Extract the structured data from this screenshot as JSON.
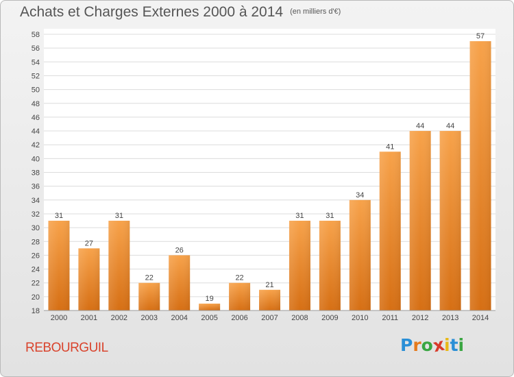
{
  "title": "Achats et Charges Externes 2000 à 2014",
  "subtitle": "(en milliers d'€)",
  "city": "REBOURGUIL",
  "logo": {
    "text": "Proxiti",
    "letter_colors": [
      "#2a8fd6",
      "#e57a1c",
      "#3aa642",
      "#d83a2a",
      "#e8b818",
      "#2a8fd6",
      "#3aa642"
    ]
  },
  "colors": {
    "bar_top": "#f7a24a",
    "bar_bottom": "#d66f14",
    "grid": "#dcdcdc",
    "text": "#444444"
  },
  "chart_data": {
    "type": "bar",
    "categories": [
      "2000",
      "2001",
      "2002",
      "2003",
      "2004",
      "2005",
      "2006",
      "2007",
      "2008",
      "2009",
      "2010",
      "2011",
      "2012",
      "2013",
      "2014"
    ],
    "values": [
      31,
      27,
      31,
      22,
      26,
      19,
      22,
      21,
      31,
      31,
      34,
      41,
      44,
      44,
      57
    ],
    "data_labels": [
      "31",
      "27",
      "31",
      "22",
      "26",
      "19",
      "22",
      "21",
      "31",
      "31",
      "34",
      "41",
      "44",
      "44",
      "57"
    ],
    "ylim": [
      18,
      58
    ],
    "yticks": [
      18,
      20,
      22,
      24,
      26,
      28,
      30,
      32,
      34,
      36,
      38,
      40,
      42,
      44,
      46,
      48,
      50,
      52,
      54,
      56,
      58
    ],
    "grid": true,
    "title": "Achats et Charges Externes 2000 à 2014",
    "xlabel": "",
    "ylabel": ""
  }
}
